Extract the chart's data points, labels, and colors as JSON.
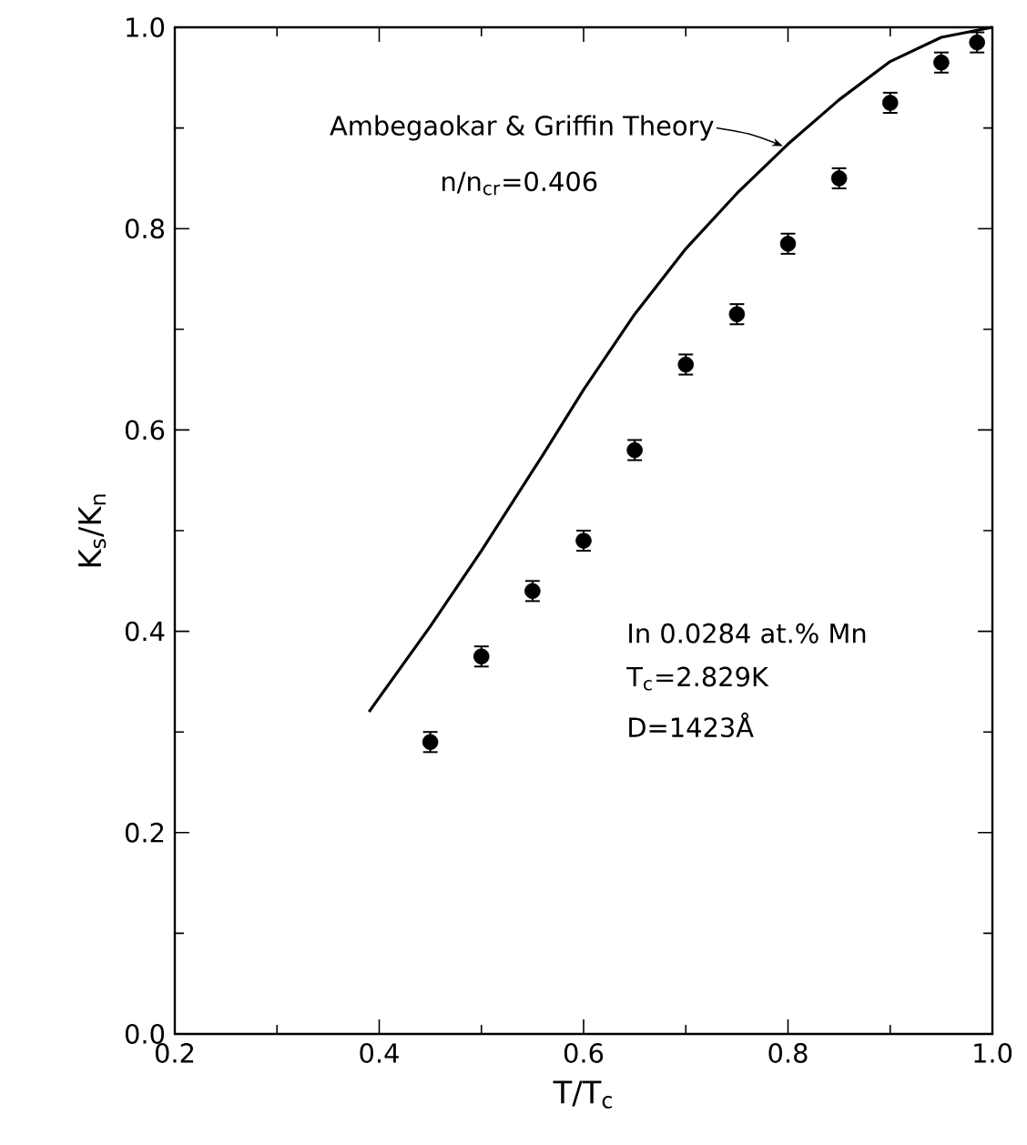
{
  "chart_data": {
    "type": "scatter",
    "xlabel": "T/T$_{c}$",
    "ylabel": "K$_{s}$/K$_{n}$",
    "xlim": [
      0.2,
      1.0
    ],
    "ylim": [
      0.0,
      1.0
    ],
    "xticks": [
      0.2,
      0.4,
      0.6,
      0.8,
      {
        "value": 1.0,
        "label": "1.0"
      }
    ],
    "yticks": [
      {
        "value": 0.0,
        "label": "0.0"
      },
      0.2,
      0.4,
      0.6,
      0.8,
      {
        "value": 1.0,
        "label": "1.0"
      }
    ],
    "grid": false,
    "series": [
      {
        "marker": "circle",
        "color": "#000000",
        "x": [
          0.45,
          0.5,
          0.55,
          0.6,
          0.65,
          0.7,
          0.75,
          0.8,
          0.85,
          0.9,
          0.95,
          0.985
        ],
        "values": [
          0.29,
          0.375,
          0.44,
          0.49,
          0.58,
          0.665,
          0.715,
          0.785,
          0.85,
          0.925,
          0.965,
          0.985
        ],
        "errors": [
          0.01,
          0.01,
          0.01,
          0.01,
          0.01,
          0.01,
          0.01,
          0.01,
          0.01,
          0.01,
          0.01,
          0.01
        ]
      },
      {
        "type": "line",
        "color": "#000000",
        "marker": "none",
        "line_style": "solid",
        "x": [
          0.39,
          0.45,
          0.5,
          0.56,
          0.6,
          0.65,
          0.7,
          0.75,
          0.8,
          0.85,
          0.9,
          0.95,
          1.0
        ],
        "values": [
          0.32,
          0.405,
          0.48,
          0.575,
          0.64,
          0.715,
          0.78,
          0.835,
          0.884,
          0.928,
          0.966,
          0.99,
          1.0
        ]
      }
    ],
    "annotations": [
      {
        "text": "Ambegaokar & Griffin Theory",
        "x": 0.795,
        "y": 0.882
      },
      "n/n$_{cr}$=0.406",
      "In 0.0284 at.% Mn",
      "T$_{c}$=2.829K",
      "D=1423Å"
    ]
  }
}
